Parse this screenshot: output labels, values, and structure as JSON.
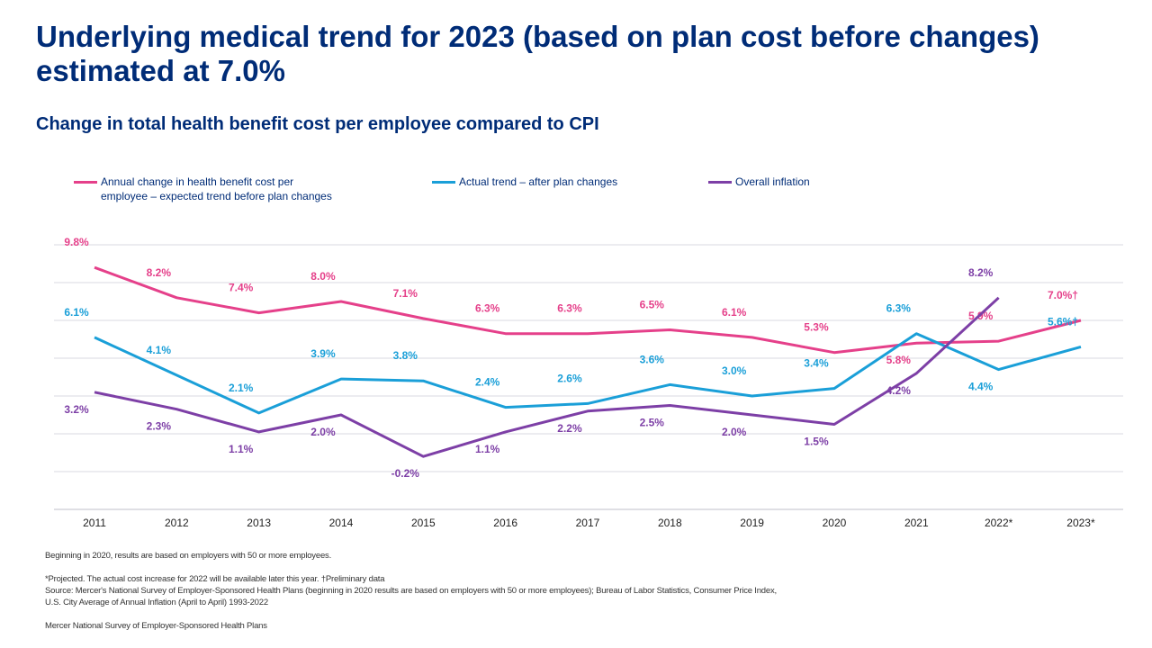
{
  "title": "Underlying medical trend for 2023 (based on plan cost before changes) estimated at 7.0%",
  "subtitle": "Change in total health benefit cost per employee compared to CPI",
  "chart_data": {
    "type": "line",
    "categories": [
      "2011",
      "2012",
      "2013",
      "2014",
      "2015",
      "2016",
      "2017",
      "2018",
      "2019",
      "2020",
      "2021",
      "2022*",
      "2023*"
    ],
    "ylim": [
      -3,
      11
    ],
    "grid": true,
    "legend_placement": "top",
    "series": [
      {
        "name": "Annual change in health benefit cost per employee – expected trend before plan changes",
        "color": "#e5408a",
        "values": [
          9.8,
          8.2,
          7.4,
          8.0,
          7.1,
          6.3,
          6.3,
          6.5,
          6.1,
          5.3,
          5.8,
          5.9,
          7.0
        ],
        "labels": [
          "9.8%",
          "8.2%",
          "7.4%",
          "8.0%",
          "7.1%",
          "6.3%",
          "6.3%",
          "6.5%",
          "6.1%",
          "5.3%",
          "5.8%",
          "5.9%",
          "7.0%†"
        ]
      },
      {
        "name": "Actual trend – after plan changes",
        "color": "#1a9fd8",
        "values": [
          6.1,
          4.1,
          2.1,
          3.9,
          3.8,
          2.4,
          2.6,
          3.6,
          3.0,
          3.4,
          6.3,
          4.4,
          5.6
        ],
        "labels": [
          "6.1%",
          "4.1%",
          "2.1%",
          "3.9%",
          "3.8%",
          "2.4%",
          "2.6%",
          "3.6%",
          "3.0%",
          "3.4%",
          "6.3%",
          "4.4%",
          "5.6%†"
        ]
      },
      {
        "name": "Overall inflation",
        "color": "#7d3fa6",
        "values": [
          3.2,
          2.3,
          1.1,
          2.0,
          -0.2,
          1.1,
          2.2,
          2.5,
          2.0,
          1.5,
          4.2,
          8.2,
          null
        ],
        "labels": [
          "3.2%",
          "2.3%",
          "1.1%",
          "2.0%",
          "-0.2%",
          "1.1%",
          "2.2%",
          "2.5%",
          "2.0%",
          "1.5%",
          "4.2%",
          "8.2%",
          ""
        ]
      }
    ]
  },
  "legend": {
    "pink_line1": "Annual change in health benefit cost per",
    "pink_line2": "employee – expected trend before plan changes",
    "blue": "Actual trend – after plan changes",
    "purple": "Overall inflation"
  },
  "notes": {
    "note1": "Beginning in 2020, results are based on employers with 50 or more employees.",
    "note2": "*Projected. The actual cost increase for 2022 will be available later this year. †Preliminary data",
    "note3": "Source: Mercer's National Survey of Employer-Sponsored Health Plans (beginning in 2020 results are based on employers with 50 or more employees); Bureau of Labor Statistics, Consumer Price Index,",
    "note4": "U.S. City Average of Annual Inflation (April to April) 1993-2022",
    "note5": "Mercer National Survey of Employer-Sponsored Health Plans"
  }
}
